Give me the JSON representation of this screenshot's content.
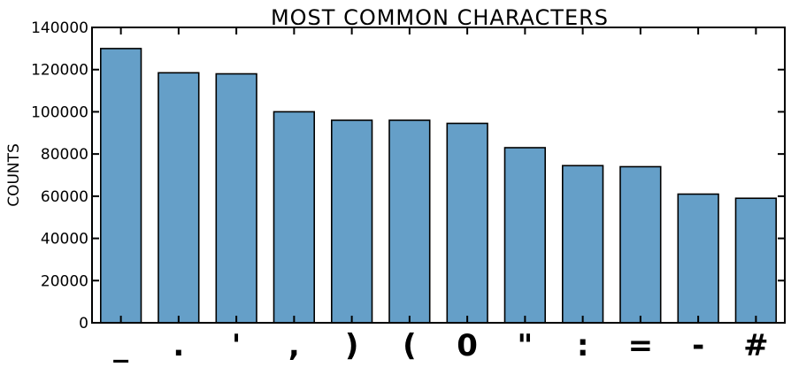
{
  "chart_data": {
    "type": "bar",
    "title": "MOST COMMON CHARACTERS",
    "xlabel": "",
    "ylabel": "COUNTS",
    "ylim": [
      0,
      140000
    ],
    "yticks": [
      0,
      20000,
      40000,
      60000,
      80000,
      100000,
      120000,
      140000
    ],
    "categories": [
      "_",
      ".",
      "'",
      ",",
      ")",
      "(",
      "0",
      "\"",
      ":",
      "=",
      "-",
      "#"
    ],
    "values": [
      130000,
      118500,
      118000,
      100000,
      96000,
      96000,
      94500,
      83000,
      74500,
      74000,
      61000,
      59000
    ],
    "bar_color": "#659fc8",
    "grid": false,
    "legend": "none"
  }
}
